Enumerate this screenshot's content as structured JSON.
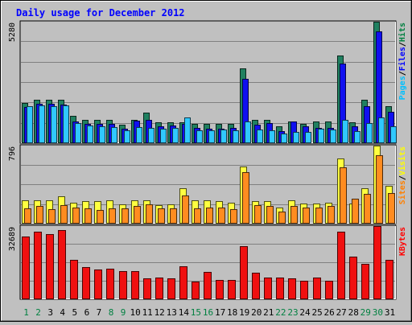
{
  "chart_data": {
    "type": "bar",
    "title": "Daily usage for December 2012",
    "categories": [
      "1",
      "2",
      "3",
      "4",
      "5",
      "6",
      "7",
      "8",
      "9",
      "10",
      "11",
      "12",
      "13",
      "14",
      "15",
      "16",
      "17",
      "18",
      "19",
      "20",
      "21",
      "22",
      "23",
      "24",
      "25",
      "26",
      "27",
      "28",
      "29",
      "30",
      "31"
    ],
    "weekend_days": [
      "1",
      "2",
      "8",
      "9",
      "15",
      "16",
      "22",
      "23",
      "29",
      "30"
    ],
    "panels": [
      {
        "name": "hits-files-pages",
        "max_label": "5280",
        "ylim": [
          0,
          5280
        ],
        "legend": [
          {
            "text": "Pages",
            "color": "#00c0ff"
          },
          {
            "text": "/",
            "color": "#000000"
          },
          {
            "text": "Files",
            "color": "#0000ff"
          },
          {
            "text": "/",
            "color": "#000000"
          },
          {
            "text": "Hits",
            "color": "#008040"
          }
        ],
        "series": [
          {
            "name": "Hits",
            "color": "#208060",
            "values": [
              1730,
              1870,
              1870,
              1870,
              1170,
              990,
              990,
              990,
              760,
              990,
              1300,
              880,
              880,
              870,
              800,
              800,
              800,
              800,
              3230,
              990,
              990,
              700,
              900,
              800,
              900,
              900,
              3800,
              880,
              1870,
              5280,
              1580
            ]
          },
          {
            "name": "Files",
            "color": "#1010f0",
            "values": [
              1550,
              1680,
              1690,
              1650,
              900,
              820,
              800,
              820,
              600,
              940,
              1000,
              710,
              750,
              810,
              650,
              610,
              610,
              630,
              2780,
              760,
              830,
              490,
              900,
              690,
              650,
              630,
              3450,
              720,
              1580,
              4870,
              1340
            ]
          },
          {
            "name": "Pages",
            "color": "#30c8ff",
            "values": [
              1580,
              1620,
              1600,
              1620,
              830,
              740,
              700,
              680,
              520,
              680,
              620,
              600,
              630,
              1100,
              530,
              530,
              550,
              540,
              930,
              560,
              540,
              400,
              470,
              470,
              600,
              570,
              970,
              510,
              850,
              1100,
              700
            ]
          }
        ]
      },
      {
        "name": "visits-sites",
        "max_label": "796",
        "ylim": [
          0,
          796
        ],
        "legend": [
          {
            "text": "Sites",
            "color": "#ff8000"
          },
          {
            "text": "/",
            "color": "#000000"
          },
          {
            "text": "Visits",
            "color": "#ffff00"
          }
        ],
        "series": [
          {
            "name": "Visits",
            "color": "#ffff40",
            "values": [
              230,
              230,
              230,
              270,
              210,
              220,
              220,
              230,
              190,
              230,
              230,
              180,
              190,
              360,
              230,
              230,
              220,
              210,
              580,
              220,
              220,
              160,
              230,
              200,
              200,
              210,
              660,
              200,
              360,
              796,
              380
            ]
          },
          {
            "name": "Sites",
            "color": "#ff8c20",
            "values": [
              150,
              170,
              140,
              180,
              160,
              150,
              130,
              150,
              150,
              170,
              190,
              150,
              150,
              280,
              150,
              160,
              160,
              140,
              520,
              180,
              170,
              120,
              170,
              160,
              160,
              170,
              570,
              250,
              300,
              700,
              310
            ]
          }
        ]
      },
      {
        "name": "kbytes",
        "max_label": "32689",
        "ylim": [
          0,
          32689
        ],
        "legend": [
          {
            "text": "KBytes",
            "color": "#ff0000"
          }
        ],
        "series": [
          {
            "name": "KBytes",
            "color": "#f01010",
            "values": [
              28000,
              30000,
              29000,
              31000,
              17500,
              14000,
              13000,
              13500,
              12500,
              12500,
              9000,
              9500,
              9000,
              14500,
              7500,
              12000,
              8500,
              8500,
              23500,
              11500,
              9500,
              9500,
              9000,
              8000,
              9500,
              8000,
              30000,
              19000,
              15500,
              32689,
              17500
            ]
          }
        ]
      }
    ]
  }
}
